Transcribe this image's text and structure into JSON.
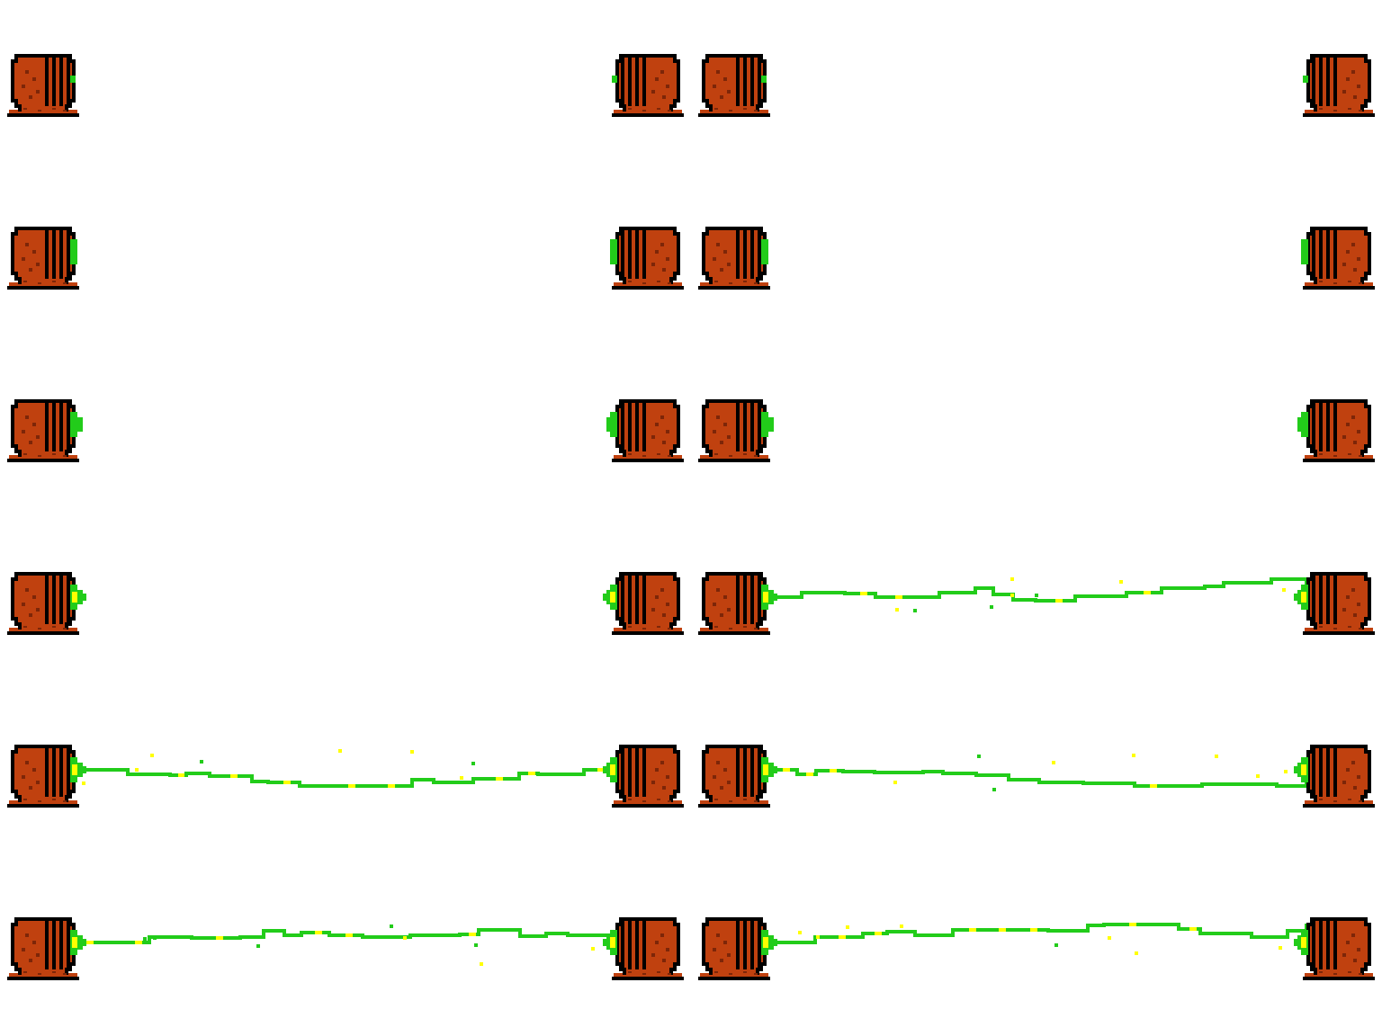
{
  "sprite_sheet": {
    "background": "#ffffff",
    "sprite": "tesla-coil-emitter",
    "frame_count": 6,
    "panels": [
      "left-pair",
      "right-pair"
    ],
    "colors": {
      "outline": "#000000",
      "body": "#c0410f",
      "body_speckle": "#7d2608",
      "beam": "#22cc1a",
      "spark": "#ffff00"
    },
    "frames": [
      {
        "frame": 1,
        "charge_level": 0.25,
        "beam_left_panel": false,
        "beam_right_panel": false
      },
      {
        "frame": 2,
        "charge_level": 0.5,
        "beam_left_panel": false,
        "beam_right_panel": false
      },
      {
        "frame": 3,
        "charge_level": 0.75,
        "beam_left_panel": false,
        "beam_right_panel": false
      },
      {
        "frame": 4,
        "charge_level": 1.0,
        "beam_left_panel": false,
        "beam_right_panel": true
      },
      {
        "frame": 5,
        "charge_level": 1.0,
        "beam_left_panel": true,
        "beam_right_panel": true
      },
      {
        "frame": 6,
        "charge_level": 1.0,
        "beam_left_panel": true,
        "beam_right_panel": true
      }
    ]
  }
}
